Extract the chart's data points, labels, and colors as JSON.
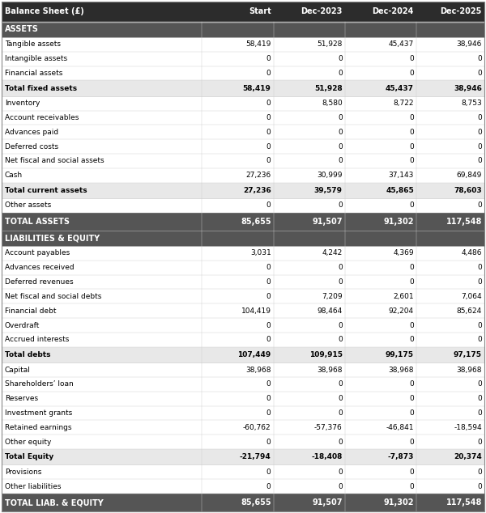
{
  "title_row": [
    "Balance Sheet (£)",
    "Start",
    "Dec-2023",
    "Dec-2024",
    "Dec-2025"
  ],
  "rows": [
    {
      "label": "ASSETS",
      "values": [
        "",
        "",
        "",
        ""
      ],
      "type": "section_header"
    },
    {
      "label": "Tangible assets",
      "values": [
        "58,419",
        "51,928",
        "45,437",
        "38,946"
      ],
      "type": "normal"
    },
    {
      "label": "Intangible assets",
      "values": [
        "0",
        "0",
        "0",
        "0"
      ],
      "type": "normal"
    },
    {
      "label": "Financial assets",
      "values": [
        "0",
        "0",
        "0",
        "0"
      ],
      "type": "normal"
    },
    {
      "label": "Total fixed assets",
      "values": [
        "58,419",
        "51,928",
        "45,437",
        "38,946"
      ],
      "type": "subtotal"
    },
    {
      "label": "Inventory",
      "values": [
        "0",
        "8,580",
        "8,722",
        "8,753"
      ],
      "type": "normal"
    },
    {
      "label": "Account receivables",
      "values": [
        "0",
        "0",
        "0",
        "0"
      ],
      "type": "normal"
    },
    {
      "label": "Advances paid",
      "values": [
        "0",
        "0",
        "0",
        "0"
      ],
      "type": "normal"
    },
    {
      "label": "Deferred costs",
      "values": [
        "0",
        "0",
        "0",
        "0"
      ],
      "type": "normal"
    },
    {
      "label": "Net fiscal and social assets",
      "values": [
        "0",
        "0",
        "0",
        "0"
      ],
      "type": "normal"
    },
    {
      "label": "Cash",
      "values": [
        "27,236",
        "30,999",
        "37,143",
        "69,849"
      ],
      "type": "normal"
    },
    {
      "label": "Total current assets",
      "values": [
        "27,236",
        "39,579",
        "45,865",
        "78,603"
      ],
      "type": "subtotal"
    },
    {
      "label": "Other assets",
      "values": [
        "0",
        "0",
        "0",
        "0"
      ],
      "type": "normal"
    },
    {
      "label": "TOTAL ASSETS",
      "values": [
        "85,655",
        "91,507",
        "91,302",
        "117,548"
      ],
      "type": "total"
    },
    {
      "label": "LIABILITIES & EQUITY",
      "values": [
        "",
        "",
        "",
        ""
      ],
      "type": "section_header"
    },
    {
      "label": "Account payables",
      "values": [
        "3,031",
        "4,242",
        "4,369",
        "4,486"
      ],
      "type": "normal"
    },
    {
      "label": "Advances received",
      "values": [
        "0",
        "0",
        "0",
        "0"
      ],
      "type": "normal"
    },
    {
      "label": "Deferred revenues",
      "values": [
        "0",
        "0",
        "0",
        "0"
      ],
      "type": "normal"
    },
    {
      "label": "Net fiscal and social debts",
      "values": [
        "0",
        "7,209",
        "2,601",
        "7,064"
      ],
      "type": "normal"
    },
    {
      "label": "Financial debt",
      "values": [
        "104,419",
        "98,464",
        "92,204",
        "85,624"
      ],
      "type": "normal"
    },
    {
      "label": "Overdraft",
      "values": [
        "0",
        "0",
        "0",
        "0"
      ],
      "type": "normal"
    },
    {
      "label": "Accrued interests",
      "values": [
        "0",
        "0",
        "0",
        "0"
      ],
      "type": "normal"
    },
    {
      "label": "Total debts",
      "values": [
        "107,449",
        "109,915",
        "99,175",
        "97,175"
      ],
      "type": "subtotal"
    },
    {
      "label": "Capital",
      "values": [
        "38,968",
        "38,968",
        "38,968",
        "38,968"
      ],
      "type": "normal"
    },
    {
      "label": "Shareholders’ loan",
      "values": [
        "0",
        "0",
        "0",
        "0"
      ],
      "type": "normal"
    },
    {
      "label": "Reserves",
      "values": [
        "0",
        "0",
        "0",
        "0"
      ],
      "type": "normal"
    },
    {
      "label": "Investment grants",
      "values": [
        "0",
        "0",
        "0",
        "0"
      ],
      "type": "normal"
    },
    {
      "label": "Retained earnings",
      "values": [
        "-60,762",
        "-57,376",
        "-46,841",
        "-18,594"
      ],
      "type": "normal"
    },
    {
      "label": "Other equity",
      "values": [
        "0",
        "0",
        "0",
        "0"
      ],
      "type": "normal"
    },
    {
      "label": "Total Equity",
      "values": [
        "-21,794",
        "-18,408",
        "-7,873",
        "20,374"
      ],
      "type": "subtotal"
    },
    {
      "label": "Provisions",
      "values": [
        "0",
        "0",
        "0",
        "0"
      ],
      "type": "normal"
    },
    {
      "label": "Other liabilities",
      "values": [
        "0",
        "0",
        "0",
        "0"
      ],
      "type": "normal"
    },
    {
      "label": "TOTAL LIAB. & EQUITY",
      "values": [
        "85,655",
        "91,507",
        "91,302",
        "117,548"
      ],
      "type": "total"
    }
  ],
  "colors": {
    "header_bg": "#2c2c2c",
    "header_text": "#ffffff",
    "section_header_bg": "#555555",
    "section_header_text": "#ffffff",
    "total_bg": "#555555",
    "total_text": "#ffffff",
    "subtotal_bg": "#e8e8e8",
    "subtotal_text": "#000000",
    "normal_bg": "#ffffff",
    "normal_text": "#000000",
    "grid_line": "#cccccc",
    "separator_line": "#888888"
  },
  "figsize": [
    6.0,
    6.34
  ],
  "dpi": 100,
  "font_size": 6.5,
  "header_font_size": 7.0
}
